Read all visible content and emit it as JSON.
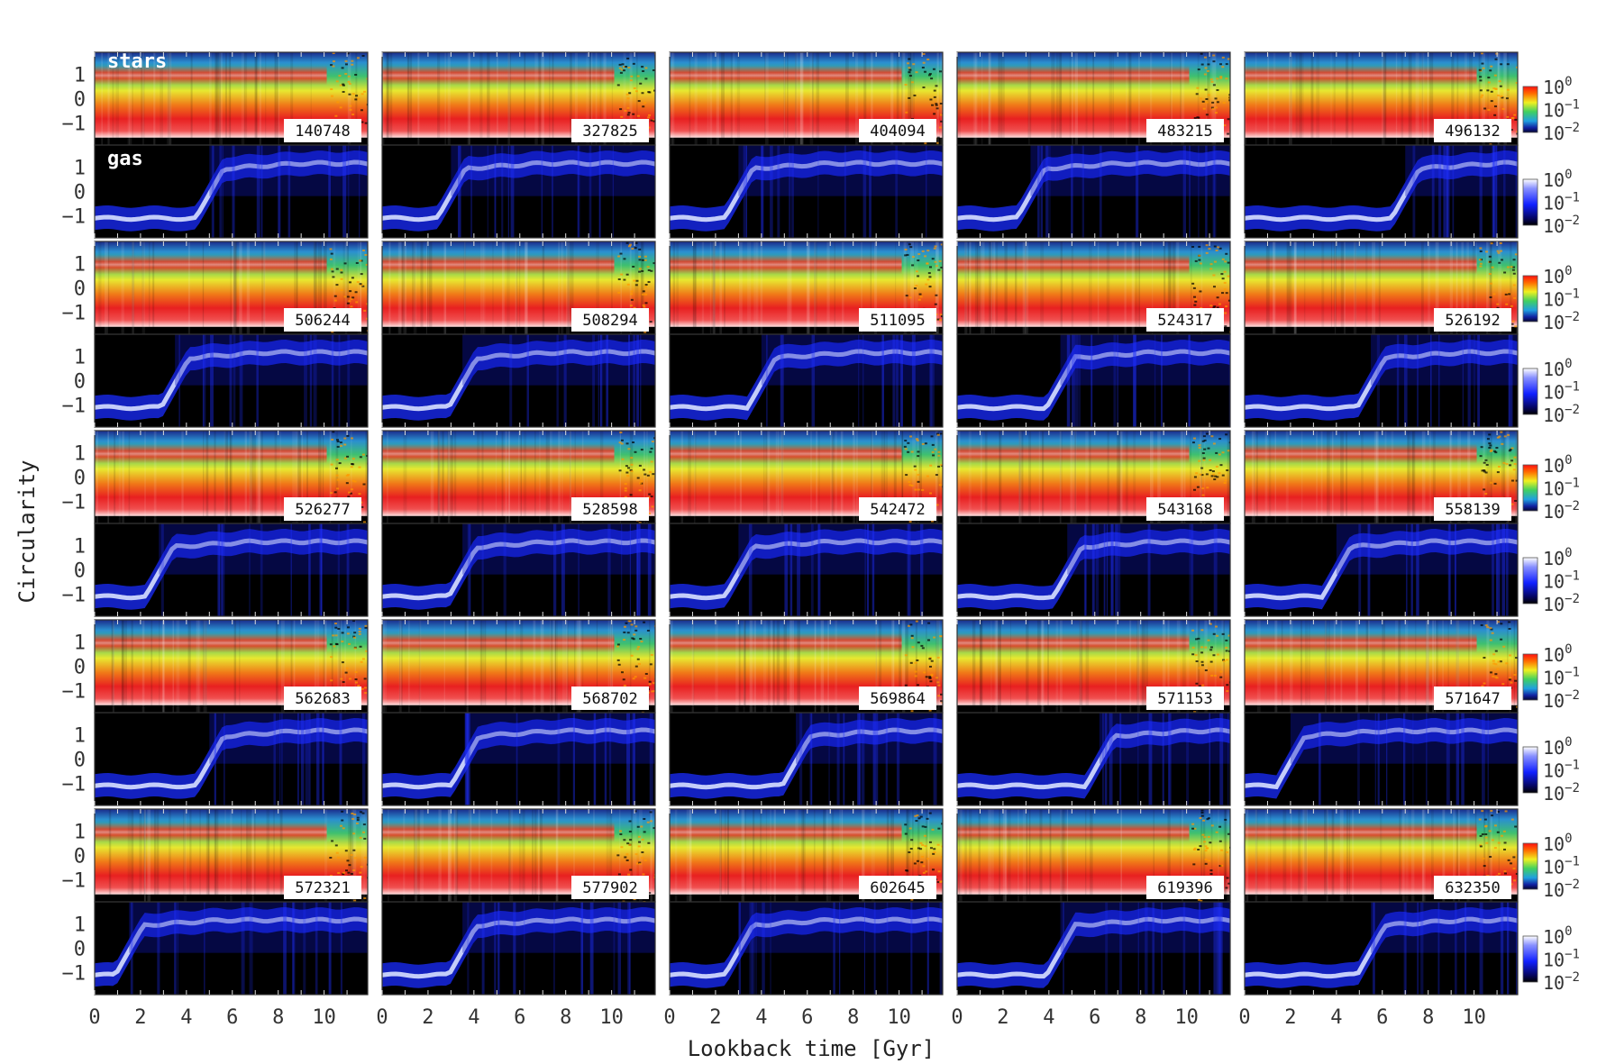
{
  "chart_data": {
    "type": "heatmap",
    "title": "",
    "xlabel": "Lookback time [Gyr]",
    "ylabel": "Circularity",
    "xlim": [
      0,
      11.9
    ],
    "ylim": [
      -1.9,
      1.9
    ],
    "x_ticks": [
      "0",
      "2",
      "4",
      "6",
      "8",
      "10"
    ],
    "y_ticks": [
      "1",
      "0",
      "−1"
    ],
    "components": [
      "stars",
      "gas"
    ],
    "colorbar": {
      "stars_cmap": "jet",
      "gas_cmap": "black-blue-white",
      "scale": "log",
      "ticks": [
        {
          "base": "10",
          "exp": "0"
        },
        {
          "base": "10",
          "exp": "−1"
        },
        {
          "base": "10",
          "exp": "−2"
        }
      ]
    },
    "galaxies": [
      {
        "id": "140748",
        "transition_gyr": 5.0
      },
      {
        "id": "327825",
        "transition_gyr": 3.0
      },
      {
        "id": "404094",
        "transition_gyr": 3.0
      },
      {
        "id": "483215",
        "transition_gyr": 3.2
      },
      {
        "id": "496132",
        "transition_gyr": 7.0
      },
      {
        "id": "506244",
        "transition_gyr": 3.5
      },
      {
        "id": "508294",
        "transition_gyr": 3.5
      },
      {
        "id": "511095",
        "transition_gyr": 4.0
      },
      {
        "id": "524317",
        "transition_gyr": 4.5
      },
      {
        "id": "526192",
        "transition_gyr": 5.5
      },
      {
        "id": "526277",
        "transition_gyr": 2.8
      },
      {
        "id": "528598",
        "transition_gyr": 3.5
      },
      {
        "id": "542472",
        "transition_gyr": 3.0
      },
      {
        "id": "543168",
        "transition_gyr": 4.8
      },
      {
        "id": "558139",
        "transition_gyr": 4.0
      },
      {
        "id": "562683",
        "transition_gyr": 5.0
      },
      {
        "id": "568702",
        "transition_gyr": 3.6
      },
      {
        "id": "569864",
        "transition_gyr": 5.5
      },
      {
        "id": "571153",
        "transition_gyr": 6.2
      },
      {
        "id": "571647",
        "transition_gyr": 2.0
      },
      {
        "id": "572321",
        "transition_gyr": 1.5
      },
      {
        "id": "577902",
        "transition_gyr": 3.5
      },
      {
        "id": "602645",
        "transition_gyr": 3.0
      },
      {
        "id": "619396",
        "transition_gyr": 4.5
      },
      {
        "id": "632350",
        "transition_gyr": 5.5
      }
    ]
  }
}
